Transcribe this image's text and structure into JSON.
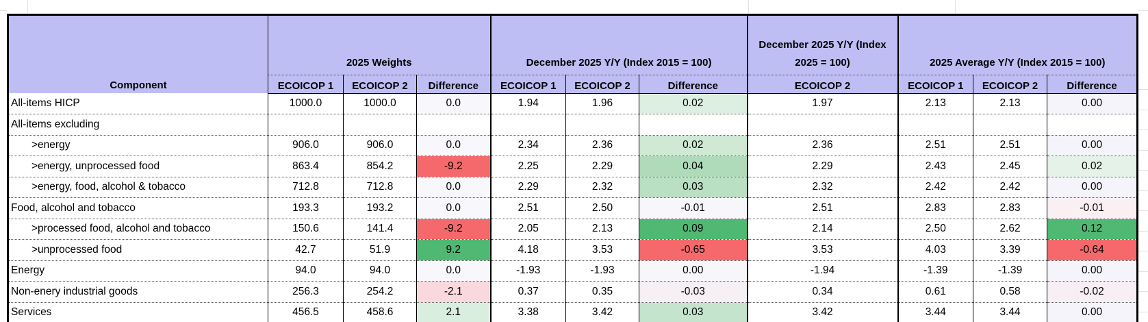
{
  "colors": {
    "header_bg": "#bebef5",
    "strong_red": "#f5696c",
    "strong_green": "#4fb873",
    "light_red": "#fad9de",
    "light_green": "#daeedf",
    "table_border": "#000000",
    "gridline": "#e2e2e2"
  },
  "table": {
    "corner_label": "Component",
    "col_groups": [
      {
        "label": "2025 Weights",
        "sub": [
          "ECOICOP 1",
          "ECOICOP 2",
          "Difference"
        ]
      },
      {
        "label": "December 2025 Y/Y (Index 2015 = 100)",
        "sub": [
          "ECOICOP 1",
          "ECOICOP 2",
          "Difference"
        ]
      },
      {
        "label": "December 2025 Y/Y (Index 2025 = 100)",
        "sub": [
          "ECOICOP 2"
        ]
      },
      {
        "label": "2025 Average Y/Y (Index 2015 = 100)",
        "sub": [
          "ECOICOP 1",
          "ECOICOP 2",
          "Difference"
        ]
      }
    ],
    "rows": [
      {
        "component": "All-items HICP",
        "indent": false,
        "cells": [
          "1000.0",
          "1000.0",
          "0.0",
          "1.94",
          "1.96",
          "0.02",
          "1.97",
          "2.13",
          "2.13",
          "0.00"
        ],
        "cell_bg": [
          null,
          null,
          "#f7f7fc",
          null,
          null,
          "#ddefe1",
          null,
          null,
          null,
          "#f4f4fa"
        ]
      },
      {
        "component": "All-items excluding",
        "indent": false,
        "cells": [
          "",
          "",
          "",
          "",
          "",
          "",
          "",
          "",
          "",
          ""
        ],
        "cell_bg": [
          null,
          null,
          null,
          null,
          null,
          null,
          null,
          null,
          null,
          null
        ]
      },
      {
        "component": ">energy",
        "indent": true,
        "cells": [
          "906.0",
          "906.0",
          "0.0",
          "2.34",
          "2.36",
          "0.02",
          "2.36",
          "2.51",
          "2.51",
          "0.00"
        ],
        "cell_bg": [
          null,
          null,
          "#f7f7fc",
          null,
          null,
          "#cfe9d5",
          null,
          null,
          null,
          "#f4f4fa"
        ]
      },
      {
        "component": ">energy, unprocessed food",
        "indent": true,
        "cells": [
          "863.4",
          "854.2",
          "-9.2",
          "2.25",
          "2.29",
          "0.04",
          "2.29",
          "2.43",
          "2.45",
          "0.02"
        ],
        "cell_bg": [
          null,
          null,
          "#f5696c",
          null,
          null,
          "#afdbba",
          null,
          null,
          null,
          "#e5f2e8"
        ]
      },
      {
        "component": ">energy, food, alcohol & tobacco",
        "indent": true,
        "cells": [
          "712.8",
          "712.8",
          "0.0",
          "2.29",
          "2.32",
          "0.03",
          "2.32",
          "2.42",
          "2.42",
          "0.00"
        ],
        "cell_bg": [
          null,
          null,
          "#f7f7fc",
          null,
          null,
          "#badfc3",
          null,
          null,
          null,
          "#f4f4fa"
        ]
      },
      {
        "component": "Food, alcohol and tobacco",
        "indent": false,
        "cells": [
          "193.3",
          "193.2",
          "0.0",
          "2.51",
          "2.50",
          "-0.01",
          "2.51",
          "2.83",
          "2.83",
          "-0.01"
        ],
        "cell_bg": [
          null,
          null,
          "#f7f7fc",
          null,
          null,
          "#f7f6fb",
          null,
          null,
          null,
          "#faf0f4"
        ]
      },
      {
        "component": ">processed food, alcohol and tobacco",
        "indent": true,
        "cells": [
          "150.6",
          "141.4",
          "-9.2",
          "2.05",
          "2.13",
          "0.09",
          "2.14",
          "2.50",
          "2.62",
          "0.12"
        ],
        "cell_bg": [
          null,
          null,
          "#f5696c",
          null,
          null,
          "#4fb873",
          null,
          null,
          null,
          "#4fb873"
        ]
      },
      {
        "component": ">unprocessed food",
        "indent": true,
        "cells": [
          "42.7",
          "51.9",
          "9.2",
          "4.18",
          "3.53",
          "-0.65",
          "3.53",
          "4.03",
          "3.39",
          "-0.64"
        ],
        "cell_bg": [
          null,
          null,
          "#4fb873",
          null,
          null,
          "#f5696c",
          null,
          null,
          null,
          "#f5696c"
        ]
      },
      {
        "component": "Energy",
        "indent": false,
        "cells": [
          "94.0",
          "94.0",
          "0.0",
          "-1.93",
          "-1.93",
          "0.00",
          "-1.94",
          "-1.39",
          "-1.39",
          "0.00"
        ],
        "cell_bg": [
          null,
          null,
          "#f7f7fc",
          null,
          null,
          "#f6f6fb",
          null,
          null,
          null,
          "#f4f4fa"
        ]
      },
      {
        "component": "Non-enery industrial goods",
        "indent": false,
        "cells": [
          "256.3",
          "254.2",
          "-2.1",
          "0.37",
          "0.35",
          "-0.03",
          "0.34",
          "0.61",
          "0.58",
          "-0.02"
        ],
        "cell_bg": [
          null,
          null,
          "#fad9de",
          null,
          null,
          "#f6eff4",
          null,
          null,
          null,
          "#f8eff4"
        ]
      },
      {
        "component": "Services",
        "indent": false,
        "cells": [
          "456.5",
          "458.6",
          "2.1",
          "3.38",
          "3.42",
          "0.03",
          "3.42",
          "3.44",
          "3.44",
          "0.00"
        ],
        "cell_bg": [
          null,
          null,
          "#daeedf",
          null,
          null,
          "#c5e4cd",
          null,
          null,
          null,
          "#f4f4fa"
        ]
      }
    ]
  },
  "chart_data": {
    "type": "table",
    "columns": [
      "Component",
      "2025 Weights ECOICOP 1",
      "2025 Weights ECOICOP 2",
      "2025 Weights Difference",
      "December 2025 Y/Y (Index 2015 = 100) ECOICOP 1",
      "December 2025 Y/Y (Index 2015 = 100) ECOICOP 2",
      "December 2025 Y/Y (Index 2015 = 100) Difference",
      "December 2025 Y/Y (Index 2025 = 100) ECOICOP 2",
      "2025 Average Y/Y (Index 2015 = 100) ECOICOP 1",
      "2025 Average Y/Y (Index 2015 = 100) ECOICOP 2",
      "2025 Average Y/Y (Index 2015 = 100) Difference"
    ],
    "rows": [
      [
        "All-items HICP",
        1000.0,
        1000.0,
        0.0,
        1.94,
        1.96,
        0.02,
        1.97,
        2.13,
        2.13,
        0.0
      ],
      [
        "All-items excluding",
        null,
        null,
        null,
        null,
        null,
        null,
        null,
        null,
        null,
        null
      ],
      [
        ">energy",
        906.0,
        906.0,
        0.0,
        2.34,
        2.36,
        0.02,
        2.36,
        2.51,
        2.51,
        0.0
      ],
      [
        ">energy, unprocessed food",
        863.4,
        854.2,
        -9.2,
        2.25,
        2.29,
        0.04,
        2.29,
        2.43,
        2.45,
        0.02
      ],
      [
        ">energy, food, alcohol & tobacco",
        712.8,
        712.8,
        0.0,
        2.29,
        2.32,
        0.03,
        2.32,
        2.42,
        2.42,
        0.0
      ],
      [
        "Food, alcohol and tobacco",
        193.3,
        193.2,
        0.0,
        2.51,
        2.5,
        -0.01,
        2.51,
        2.83,
        2.83,
        -0.01
      ],
      [
        ">processed food, alcohol and tobacco",
        150.6,
        141.4,
        -9.2,
        2.05,
        2.13,
        0.09,
        2.14,
        2.5,
        2.62,
        0.12
      ],
      [
        ">unprocessed food",
        42.7,
        51.9,
        9.2,
        4.18,
        3.53,
        -0.65,
        3.53,
        4.03,
        3.39,
        -0.64
      ],
      [
        "Energy",
        94.0,
        94.0,
        0.0,
        -1.93,
        -1.93,
        0.0,
        -1.94,
        -1.39,
        -1.39,
        0.0
      ],
      [
        "Non-enery industrial goods",
        256.3,
        254.2,
        -2.1,
        0.37,
        0.35,
        -0.03,
        0.34,
        0.61,
        0.58,
        -0.02
      ],
      [
        "Services",
        456.5,
        458.6,
        2.1,
        3.38,
        3.42,
        0.03,
        3.42,
        3.44,
        3.44,
        0.0
      ]
    ]
  }
}
